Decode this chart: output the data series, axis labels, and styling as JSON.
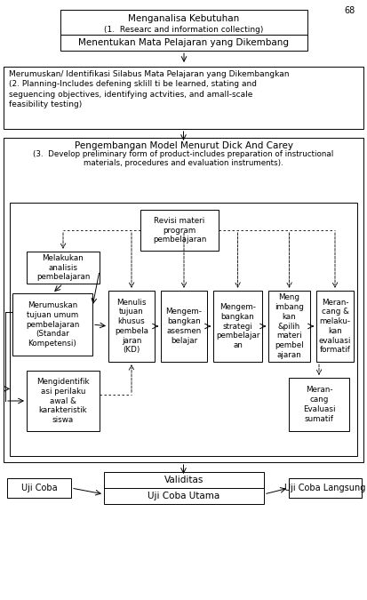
{
  "page_number": "68",
  "bg_color": "#ffffff",
  "box_color": "#ffffff",
  "box_edge": "#000000",
  "text_color": "#000000",
  "box1_line1": "Menganalisa Kebutuhan",
  "box1_line2": "(1.  Researc and information collecting)",
  "box1_line3": "Menentukan Mata Pelajaran yang Dikembang",
  "box2_text": "Merumuskan/ Identifikasi Silabus Mata Pelajaran yang Dikembangkan\n(2. Planning-Includes defening sklill ti be learned, stating and\nseguencing objectives, identifying actvities, and amall-scale\nfeasibility testing)",
  "box3_title": "Pengembangan Model Menurut Dick And Carey",
  "box3_sub1": "(3.  Develop preliminary form of product-includes preparation of instructional",
  "box3_sub2": "materials, procedures and evaluation instruments).",
  "inner_revisi": "Revisi materi\nprogram\npembelajaran",
  "inner_melakukan": "Melakukan\nanalisis\npembelajaran",
  "inner_merumuskan": "Merumuskan\ntujuan umum\npembelajaran\n(Standar\nKompetensi)",
  "inner_mengidentif": "Mengidentifik\nasi perilaku\nawal &\nkarakteristik\nsiswa",
  "inner_menulis": "Menulis\ntujuan\nkhusus\npembela\njaran\n(KD)",
  "inner_asesmen": "Mengem-\nbangkan\nasesmen\nbelajar",
  "inner_strategi": "Mengem-\nbangkan\nstrategi\npembelajar\nan",
  "inner_mengimbang": "Meng\nimbang\nkan\n&pilih\nmateri\npembel\najaran",
  "inner_formatif": "Meran-\ncang &\nmelaku-\nkan\nevaluasi\nformatif",
  "inner_sumatif": "Meran-\ncang\nEvaluasi\nsumatif",
  "validitas": "Validitas",
  "uji_coba_utama": "Uji Coba Utama",
  "uji_coba": "Uji Coba",
  "uji_coba_langsung": "Uji Coba Langsung"
}
